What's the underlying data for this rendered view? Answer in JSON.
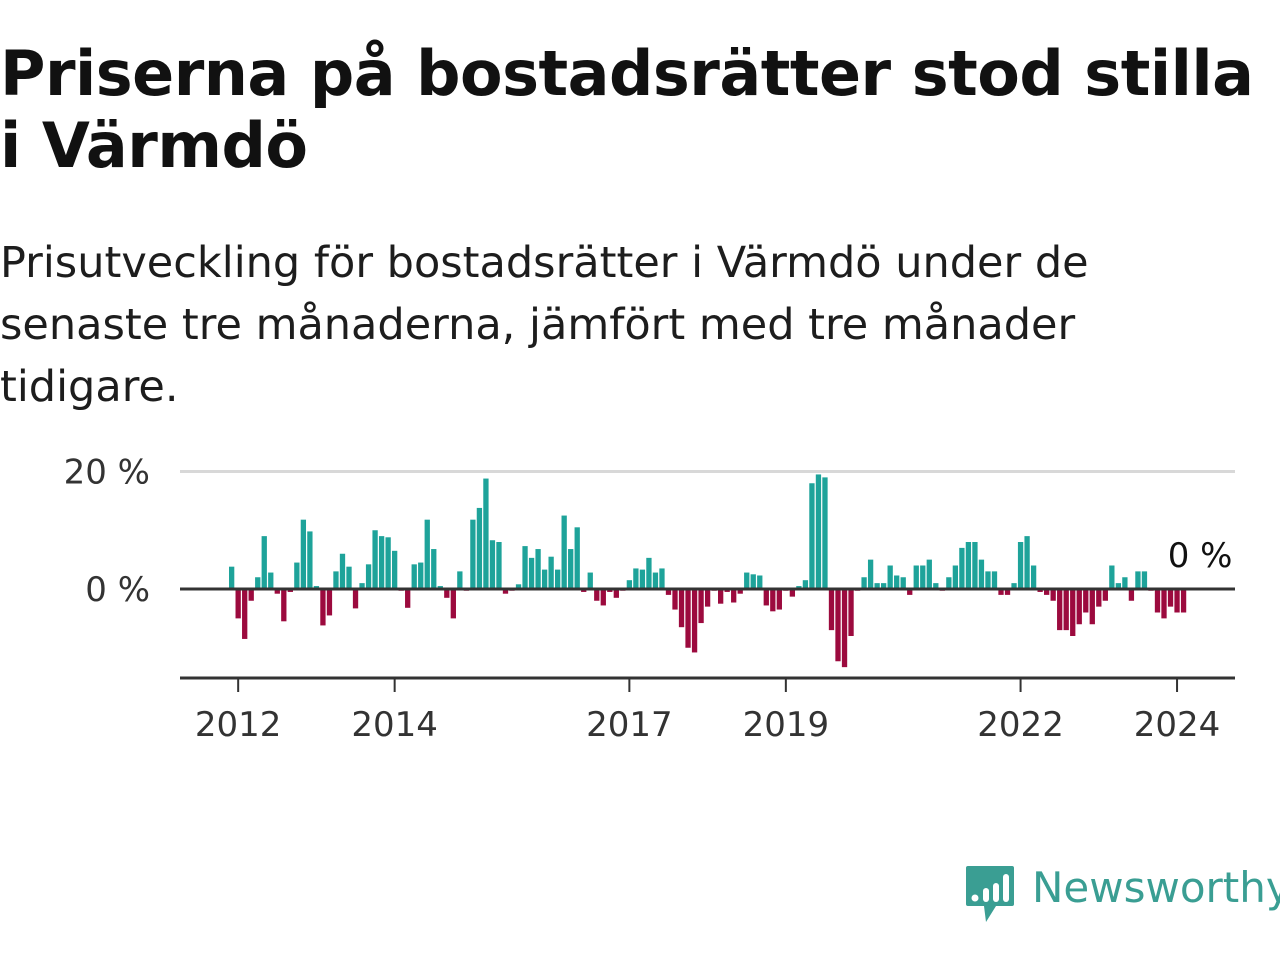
{
  "title": "Priserna på bostadsrätter stod stilla i Värmdö",
  "subtitle": "Prisutveckling för bostadsrätter i Värmdö under de senaste tre månaderna, jämfört med tre månader tidigare.",
  "brand": {
    "name": "Newsworthy"
  },
  "colors": {
    "positive": "#1ea39a",
    "negative": "#9c0a3e",
    "grid": "#d8d8d8",
    "axis": "#333333",
    "brand": "#3a9e93"
  },
  "chart_data": {
    "type": "bar",
    "title": "Priserna på bostadsrätter stod stilla i Värmdö",
    "xlabel": "",
    "ylabel": "",
    "ylim": [
      -15,
      20
    ],
    "y_ticks": [
      {
        "value": 0,
        "label": "0 %"
      },
      {
        "value": 20,
        "label": "20 %"
      }
    ],
    "x_ticks": [
      {
        "year": 2012,
        "label": "2012"
      },
      {
        "year": 2014,
        "label": "2014"
      },
      {
        "year": 2017,
        "label": "2017"
      },
      {
        "year": 2019,
        "label": "2019"
      },
      {
        "year": 2022,
        "label": "2022"
      },
      {
        "year": 2024,
        "label": "2024"
      }
    ],
    "start": "2011-12",
    "end_label": "0 %",
    "grid": true,
    "series": [
      {
        "values": [
          3.8,
          -5.0,
          -8.5,
          -2.0,
          2.0,
          9.0,
          2.8,
          -0.8,
          -5.5,
          -0.5,
          4.5,
          11.8,
          9.8,
          0.5,
          -6.2,
          -4.5,
          3.0,
          6.0,
          3.8,
          -3.3,
          1.0,
          4.2,
          10.0,
          9.0,
          8.8,
          6.5,
          -0.3,
          -3.2,
          4.2,
          4.5,
          11.8,
          6.8,
          0.5,
          -1.5,
          -5.0,
          3.0,
          -0.3,
          11.8,
          13.8,
          18.8,
          8.3,
          8.0,
          -0.8,
          -0.3,
          0.8,
          7.3,
          5.3,
          6.8,
          3.3,
          5.5,
          3.3,
          12.5,
          6.8,
          10.5,
          -0.5,
          2.8,
          -2.0,
          -2.8,
          -0.5,
          -1.5,
          -0.3,
          1.5,
          3.5,
          3.3,
          5.3,
          2.8,
          3.5,
          -1.0,
          -3.5,
          -6.5,
          -10.0,
          -10.8,
          -5.8,
          -3.0,
          -0.3,
          -2.5,
          -0.5,
          -2.3,
          -0.8,
          2.8,
          2.5,
          2.3,
          -2.8,
          -3.8,
          -3.5,
          -0.3,
          -1.3,
          0.5,
          1.5,
          18.0,
          19.5,
          19.0,
          -7.0,
          -12.3,
          -13.3,
          -8.0,
          -0.3,
          2.0,
          5.0,
          1.0,
          1.0,
          4.0,
          2.3,
          2.0,
          -1.0,
          4.0,
          4.0,
          5.0,
          1.0,
          -0.3,
          2.0,
          4.0,
          7.0,
          8.0,
          8.0,
          5.0,
          3.0,
          3.0,
          -1.0,
          -1.0,
          1.0,
          8.0,
          9.0,
          4.0,
          -0.5,
          -1.0,
          -2.0,
          -7.0,
          -7.0,
          -8.0,
          -6.0,
          -4.0,
          -6.0,
          -3.0,
          -2.0,
          4.0,
          1.0,
          2.0,
          -2.0,
          3.0,
          3.0,
          -0.3,
          -4.0,
          -5.0,
          -3.0,
          -4.0,
          -4.0,
          0.0
        ]
      }
    ]
  }
}
